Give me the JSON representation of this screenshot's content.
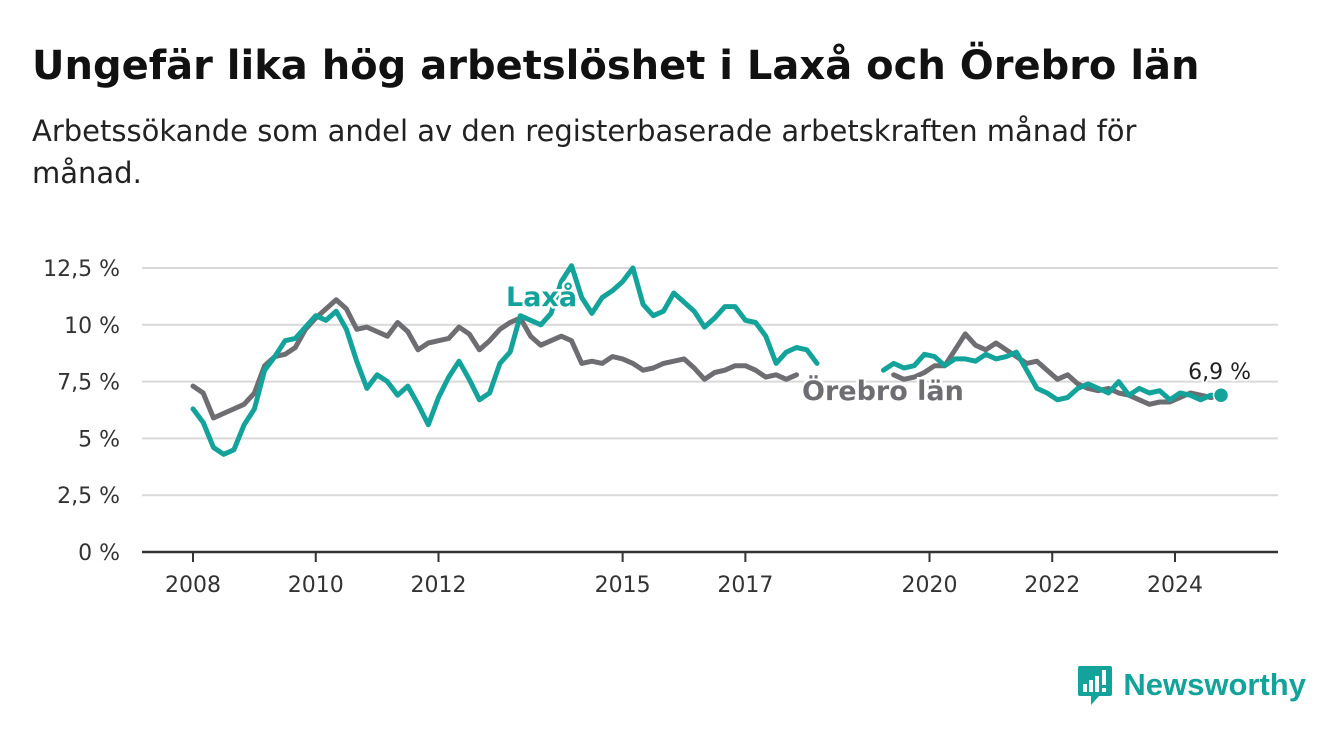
{
  "header": {
    "title": "Ungefär lika hög arbetslöshet i Laxå och Örebro län",
    "subtitle": "Arbetssökande som andel av den registerbaserade arbetskraften månad för månad."
  },
  "brand": {
    "name": "Newsworthy",
    "icon": "newsworthy-logo-icon",
    "color": "#13a39a"
  },
  "chart_data": {
    "type": "line",
    "title": "Ungefär lika hög arbetslöshet i Laxå och Örebro län",
    "subtitle": "Arbetssökande som andel av den registerbaserade arbetskraften månad för månad.",
    "xlabel": "",
    "ylabel": "",
    "x_range": [
      "2008-01",
      "2024-10"
    ],
    "ylim": [
      0,
      12.5
    ],
    "yticks": [
      0,
      2.5,
      5,
      7.5,
      10,
      12.5
    ],
    "ytick_labels": [
      "0 %",
      "2,5 %",
      "5 %",
      "7,5 %",
      "10 %",
      "12,5 %"
    ],
    "xticks": [
      "2008",
      "2010",
      "2012",
      "2015",
      "2017",
      "2020",
      "2022",
      "2024"
    ],
    "grid": true,
    "legend": "inline labels",
    "end_label": "6,9 %",
    "series": [
      {
        "name": "Laxå",
        "color": "#13a39a",
        "points": [
          [
            "2008-01",
            6.3
          ],
          [
            "2008-03",
            5.7
          ],
          [
            "2008-05",
            4.6
          ],
          [
            "2008-07",
            4.3
          ],
          [
            "2008-09",
            4.5
          ],
          [
            "2008-11",
            5.6
          ],
          [
            "2009-01",
            6.3
          ],
          [
            "2009-03",
            8.0
          ],
          [
            "2009-05",
            8.6
          ],
          [
            "2009-07",
            9.3
          ],
          [
            "2009-09",
            9.4
          ],
          [
            "2009-11",
            9.9
          ],
          [
            "2010-01",
            10.4
          ],
          [
            "2010-03",
            10.2
          ],
          [
            "2010-05",
            10.6
          ],
          [
            "2010-07",
            9.8
          ],
          [
            "2010-09",
            8.4
          ],
          [
            "2010-11",
            7.2
          ],
          [
            "2011-01",
            7.8
          ],
          [
            "2011-03",
            7.5
          ],
          [
            "2011-05",
            6.9
          ],
          [
            "2011-07",
            7.3
          ],
          [
            "2011-09",
            6.5
          ],
          [
            "2011-11",
            5.6
          ],
          [
            "2012-01",
            6.8
          ],
          [
            "2012-03",
            7.7
          ],
          [
            "2012-05",
            8.4
          ],
          [
            "2012-07",
            7.6
          ],
          [
            "2012-09",
            6.7
          ],
          [
            "2012-11",
            7.0
          ],
          [
            "2013-01",
            8.3
          ],
          [
            "2013-03",
            8.8
          ],
          [
            "2013-05",
            10.4
          ],
          [
            "2013-07",
            10.2
          ],
          [
            "2013-09",
            10.0
          ],
          [
            "2013-11",
            10.5
          ],
          [
            "2014-01",
            11.9
          ],
          [
            "2014-03",
            12.6
          ],
          [
            "2014-05",
            11.2
          ],
          [
            "2014-07",
            10.5
          ],
          [
            "2014-09",
            11.2
          ],
          [
            "2014-11",
            11.5
          ],
          [
            "2015-01",
            11.9
          ],
          [
            "2015-03",
            12.5
          ],
          [
            "2015-05",
            10.9
          ],
          [
            "2015-07",
            10.4
          ],
          [
            "2015-09",
            10.6
          ],
          [
            "2015-11",
            11.4
          ],
          [
            "2016-01",
            11.0
          ],
          [
            "2016-03",
            10.6
          ],
          [
            "2016-05",
            9.9
          ],
          [
            "2016-07",
            10.3
          ],
          [
            "2016-09",
            10.8
          ],
          [
            "2016-11",
            10.8
          ],
          [
            "2017-01",
            10.2
          ],
          [
            "2017-03",
            10.1
          ],
          [
            "2017-05",
            9.5
          ],
          [
            "2017-07",
            8.3
          ],
          [
            "2017-09",
            8.8
          ],
          [
            "2017-11",
            9.0
          ],
          [
            "2018-01",
            8.9
          ],
          [
            "2018-03",
            8.3
          ],
          null,
          [
            "2019-04",
            8.0
          ],
          [
            "2019-06",
            8.3
          ],
          [
            "2019-08",
            8.1
          ],
          [
            "2019-10",
            8.2
          ],
          [
            "2019-12",
            8.7
          ],
          [
            "2020-02",
            8.6
          ],
          [
            "2020-04",
            8.2
          ],
          [
            "2020-06",
            8.5
          ],
          [
            "2020-08",
            8.5
          ],
          [
            "2020-10",
            8.4
          ],
          [
            "2020-12",
            8.7
          ],
          [
            "2021-02",
            8.5
          ],
          [
            "2021-04",
            8.6
          ],
          [
            "2021-06",
            8.8
          ],
          [
            "2021-08",
            8.0
          ],
          [
            "2021-10",
            7.2
          ],
          [
            "2021-12",
            7.0
          ],
          [
            "2022-02",
            6.7
          ],
          [
            "2022-04",
            6.8
          ],
          [
            "2022-06",
            7.2
          ],
          [
            "2022-08",
            7.4
          ],
          [
            "2022-10",
            7.2
          ],
          [
            "2022-12",
            7.0
          ],
          [
            "2023-02",
            7.5
          ],
          [
            "2023-04",
            6.9
          ],
          [
            "2023-06",
            7.2
          ],
          [
            "2023-08",
            7.0
          ],
          [
            "2023-10",
            7.1
          ],
          [
            "2023-12",
            6.7
          ],
          [
            "2024-02",
            7.0
          ],
          [
            "2024-04",
            6.9
          ],
          [
            "2024-06",
            6.7
          ],
          [
            "2024-08",
            6.9
          ],
          [
            "2024-10",
            6.9
          ]
        ]
      },
      {
        "name": "Örebro län",
        "color": "#6e6d72",
        "points": [
          [
            "2008-01",
            7.3
          ],
          [
            "2008-03",
            7.0
          ],
          [
            "2008-05",
            5.9
          ],
          [
            "2008-07",
            6.1
          ],
          [
            "2008-09",
            6.3
          ],
          [
            "2008-11",
            6.5
          ],
          [
            "2009-01",
            7.0
          ],
          [
            "2009-03",
            8.2
          ],
          [
            "2009-05",
            8.6
          ],
          [
            "2009-07",
            8.7
          ],
          [
            "2009-09",
            9.0
          ],
          [
            "2009-11",
            9.8
          ],
          [
            "2010-01",
            10.3
          ],
          [
            "2010-03",
            10.7
          ],
          [
            "2010-05",
            11.1
          ],
          [
            "2010-07",
            10.7
          ],
          [
            "2010-09",
            9.8
          ],
          [
            "2010-11",
            9.9
          ],
          [
            "2011-01",
            9.7
          ],
          [
            "2011-03",
            9.5
          ],
          [
            "2011-05",
            10.1
          ],
          [
            "2011-07",
            9.7
          ],
          [
            "2011-09",
            8.9
          ],
          [
            "2011-11",
            9.2
          ],
          [
            "2012-01",
            9.3
          ],
          [
            "2012-03",
            9.4
          ],
          [
            "2012-05",
            9.9
          ],
          [
            "2012-07",
            9.6
          ],
          [
            "2012-09",
            8.9
          ],
          [
            "2012-11",
            9.3
          ],
          [
            "2013-01",
            9.8
          ],
          [
            "2013-03",
            10.1
          ],
          [
            "2013-05",
            10.3
          ],
          [
            "2013-07",
            9.5
          ],
          [
            "2013-09",
            9.1
          ],
          [
            "2013-11",
            9.3
          ],
          [
            "2014-01",
            9.5
          ],
          [
            "2014-03",
            9.3
          ],
          [
            "2014-05",
            8.3
          ],
          [
            "2014-07",
            8.4
          ],
          [
            "2014-09",
            8.3
          ],
          [
            "2014-11",
            8.6
          ],
          [
            "2015-01",
            8.5
          ],
          [
            "2015-03",
            8.3
          ],
          [
            "2015-05",
            8.0
          ],
          [
            "2015-07",
            8.1
          ],
          [
            "2015-09",
            8.3
          ],
          [
            "2015-11",
            8.4
          ],
          [
            "2016-01",
            8.5
          ],
          [
            "2016-03",
            8.1
          ],
          [
            "2016-05",
            7.6
          ],
          [
            "2016-07",
            7.9
          ],
          [
            "2016-09",
            8.0
          ],
          [
            "2016-11",
            8.2
          ],
          [
            "2017-01",
            8.2
          ],
          [
            "2017-03",
            8.0
          ],
          [
            "2017-05",
            7.7
          ],
          [
            "2017-07",
            7.8
          ],
          [
            "2017-09",
            7.6
          ],
          [
            "2017-11",
            7.8
          ],
          null,
          [
            "2019-06",
            7.8
          ],
          [
            "2019-08",
            7.6
          ],
          [
            "2019-10",
            7.7
          ],
          [
            "2019-12",
            7.9
          ],
          [
            "2020-02",
            8.2
          ],
          [
            "2020-04",
            8.2
          ],
          [
            "2020-06",
            8.9
          ],
          [
            "2020-08",
            9.6
          ],
          [
            "2020-10",
            9.1
          ],
          [
            "2020-12",
            8.9
          ],
          [
            "2021-02",
            9.2
          ],
          [
            "2021-04",
            8.9
          ],
          [
            "2021-06",
            8.6
          ],
          [
            "2021-08",
            8.3
          ],
          [
            "2021-10",
            8.4
          ],
          [
            "2021-12",
            8.0
          ],
          [
            "2022-02",
            7.6
          ],
          [
            "2022-04",
            7.8
          ],
          [
            "2022-06",
            7.4
          ],
          [
            "2022-08",
            7.2
          ],
          [
            "2022-10",
            7.1
          ],
          [
            "2022-12",
            7.2
          ],
          [
            "2023-02",
            7.0
          ],
          [
            "2023-04",
            6.9
          ],
          [
            "2023-06",
            6.7
          ],
          [
            "2023-08",
            6.5
          ],
          [
            "2023-10",
            6.6
          ],
          [
            "2023-12",
            6.6
          ],
          [
            "2024-02",
            6.8
          ],
          [
            "2024-04",
            7.0
          ],
          [
            "2024-06",
            6.9
          ],
          [
            "2024-08",
            6.8
          ],
          [
            "2024-10",
            6.9
          ]
        ]
      }
    ]
  }
}
